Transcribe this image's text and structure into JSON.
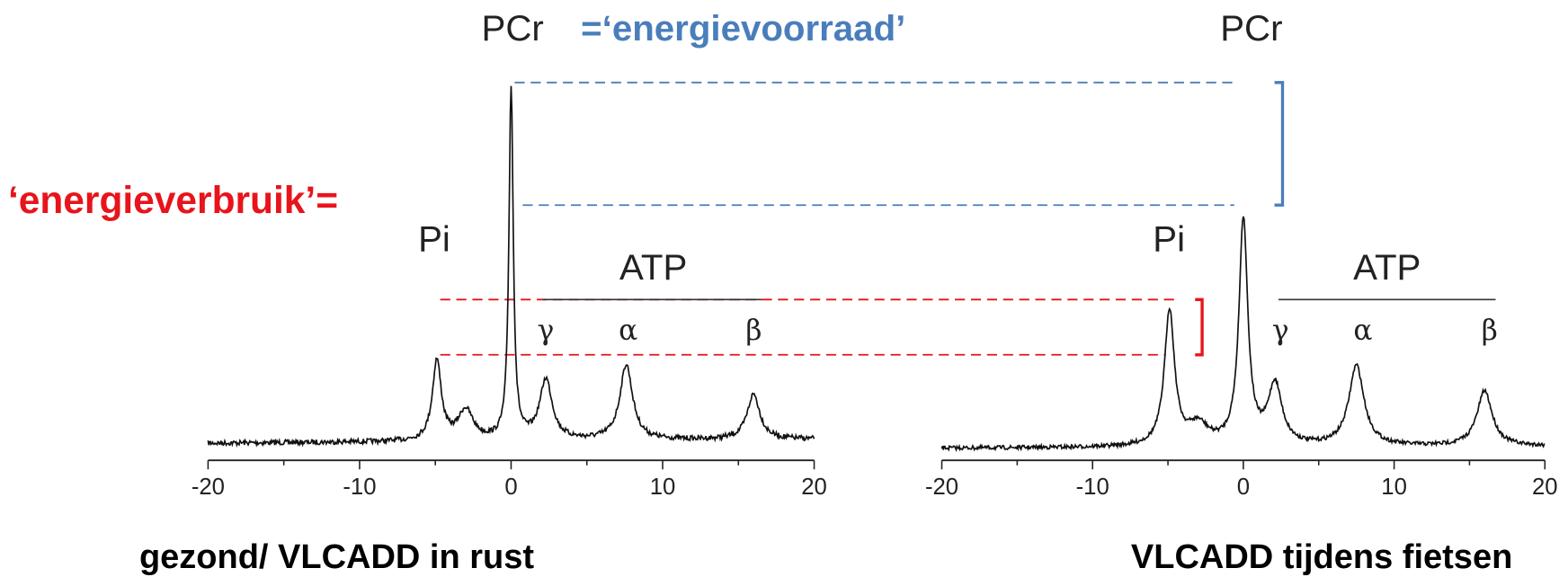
{
  "title_left": "PCr",
  "title_right": "PCr",
  "energy_store": "=‘energievoorraad’",
  "energy_use": "‘energieverbruik’=",
  "left_spectrum": {
    "pi": "Pi",
    "atp": "ATP",
    "gamma": "γ",
    "alpha": "α",
    "beta": "β",
    "ticks": [
      "-20",
      "-10",
      "0",
      "10",
      "20"
    ],
    "caption": "gezond/ VLCADD in rust"
  },
  "right_spectrum": {
    "pi": "Pi",
    "atp": "ATP",
    "gamma": "γ",
    "alpha": "α",
    "beta": "β",
    "ticks": [
      "-20",
      "-10",
      "0",
      "10",
      "20"
    ],
    "caption": "VLCADD tijdens fietsen"
  }
}
